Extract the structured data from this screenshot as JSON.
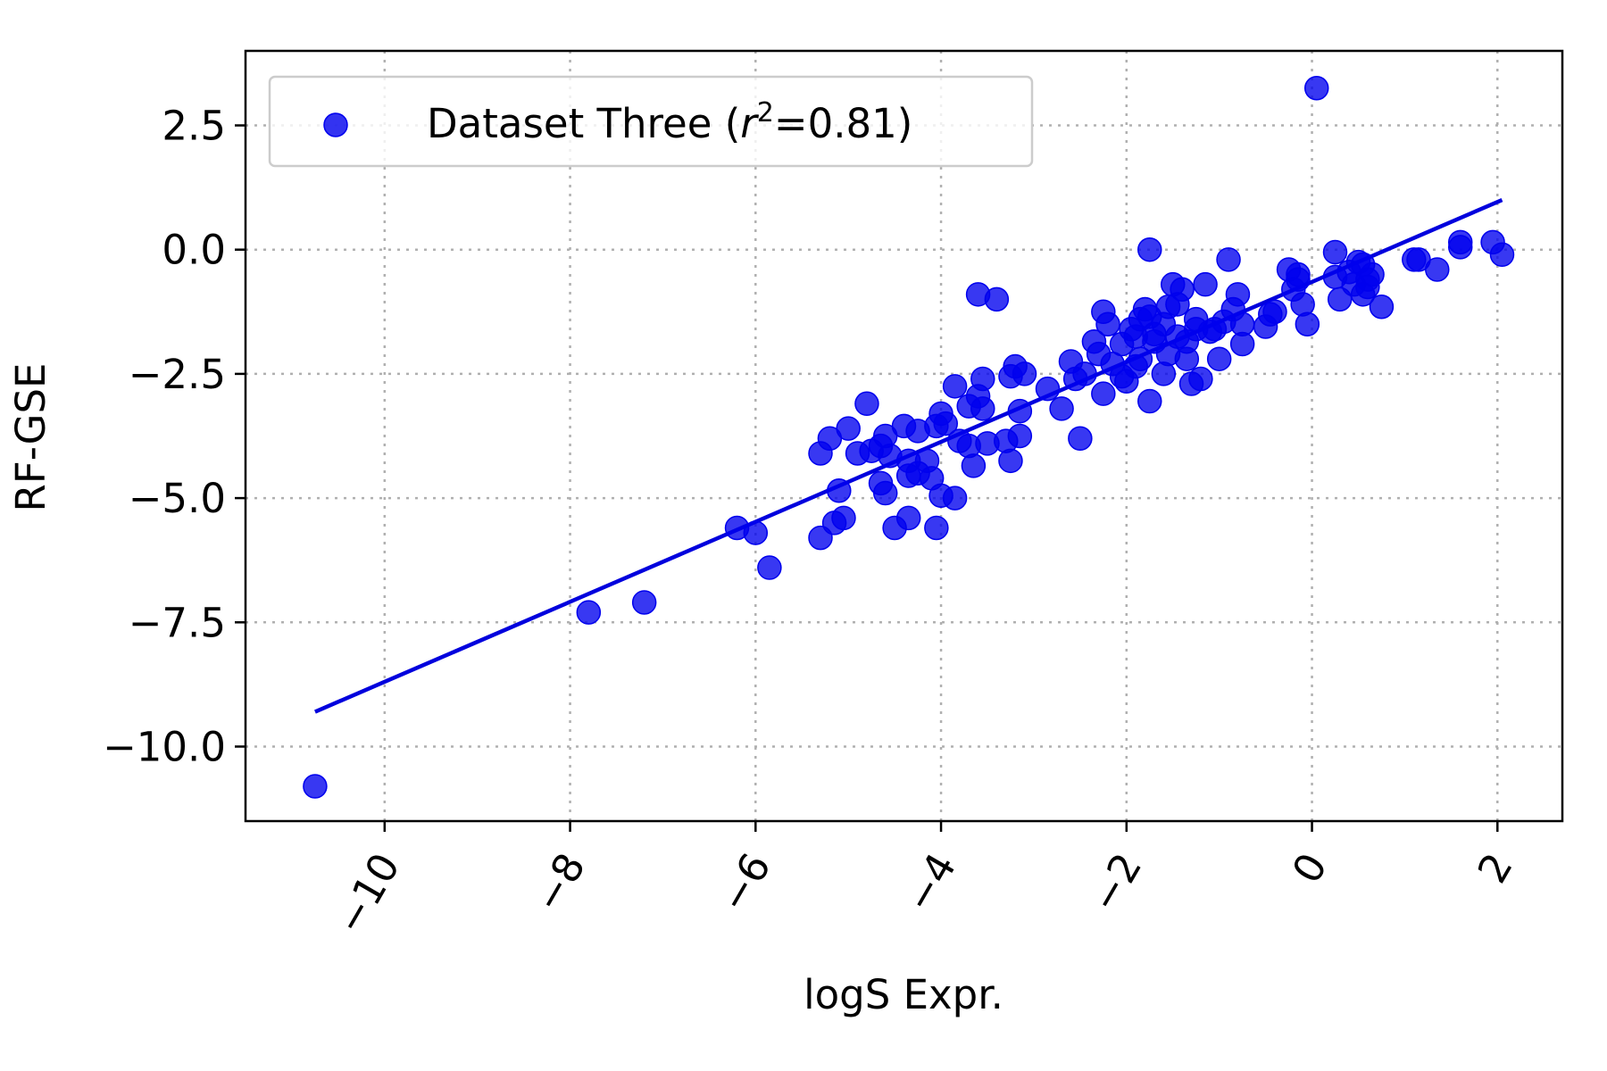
{
  "chart_data": {
    "type": "scatter",
    "xlabel": "logS Expr.",
    "ylabel": "RF-GSE",
    "xlim": [
      -11.5,
      2.7
    ],
    "ylim": [
      -11.5,
      4.0
    ],
    "xticks": [
      -10,
      -8,
      -6,
      -4,
      -2,
      0,
      2
    ],
    "xtick_labels": [
      "−10",
      "−8",
      "−6",
      "−4",
      "−2",
      "0",
      "2"
    ],
    "yticks": [
      2.5,
      0.0,
      -2.5,
      -5.0,
      -7.5,
      -10.0
    ],
    "ytick_labels": [
      "2.5",
      "0.0",
      "−2.5",
      "−5.0",
      "−7.5",
      "−10.0"
    ],
    "grid": true,
    "legend_position": "upper-left",
    "legend": {
      "label_prefix": "Dataset Three (",
      "label_var": "r",
      "label_sup": "2",
      "label_suffix": "=0.81)"
    },
    "colors": {
      "points": "#0000ee",
      "fit_line": "#0000dd"
    },
    "fit_line": {
      "x": [
        -10.75,
        2.05
      ],
      "y": [
        -9.3,
        1.0
      ]
    },
    "series": [
      {
        "points": [
          [
            -10.75,
            -10.8
          ],
          [
            -7.8,
            -7.3
          ],
          [
            -7.2,
            -7.1
          ],
          [
            -6.2,
            -5.6
          ],
          [
            -6.0,
            -5.7
          ],
          [
            -5.85,
            -6.4
          ],
          [
            -5.3,
            -4.1
          ],
          [
            -5.2,
            -3.8
          ],
          [
            -5.3,
            -5.8
          ],
          [
            -5.0,
            -3.6
          ],
          [
            -5.05,
            -5.4
          ],
          [
            -5.15,
            -5.5
          ],
          [
            -5.1,
            -4.85
          ],
          [
            -4.9,
            -4.1
          ],
          [
            -4.8,
            -3.1
          ],
          [
            -4.75,
            -4.05
          ],
          [
            -4.65,
            -3.95
          ],
          [
            -4.6,
            -3.75
          ],
          [
            -4.55,
            -4.15
          ],
          [
            -4.6,
            -4.9
          ],
          [
            -4.65,
            -4.7
          ],
          [
            -4.5,
            -5.6
          ],
          [
            -4.35,
            -5.4
          ],
          [
            -4.4,
            -3.55
          ],
          [
            -4.25,
            -3.65
          ],
          [
            -4.35,
            -4.55
          ],
          [
            -4.25,
            -4.5
          ],
          [
            -4.15,
            -4.25
          ],
          [
            -4.1,
            -4.6
          ],
          [
            -4.05,
            -3.55
          ],
          [
            -4.0,
            -3.3
          ],
          [
            -3.95,
            -3.5
          ],
          [
            -4.0,
            -4.95
          ],
          [
            -4.05,
            -5.6
          ],
          [
            -3.85,
            -5.0
          ],
          [
            -3.8,
            -3.85
          ],
          [
            -3.7,
            -3.95
          ],
          [
            -3.85,
            -2.75
          ],
          [
            -3.7,
            -3.15
          ],
          [
            -3.6,
            -2.95
          ],
          [
            -3.55,
            -3.2
          ],
          [
            -3.55,
            -2.6
          ],
          [
            -3.65,
            -4.35
          ],
          [
            -3.5,
            -3.9
          ],
          [
            -3.6,
            -0.9
          ],
          [
            -3.4,
            -1.0
          ],
          [
            -3.3,
            -3.85
          ],
          [
            -3.25,
            -4.25
          ],
          [
            -3.15,
            -3.75
          ],
          [
            -3.15,
            -3.25
          ],
          [
            -3.2,
            -2.35
          ],
          [
            -3.1,
            -2.5
          ],
          [
            -3.25,
            -2.55
          ],
          [
            -2.85,
            -2.8
          ],
          [
            -2.7,
            -3.2
          ],
          [
            -2.6,
            -2.25
          ],
          [
            -2.5,
            -3.8
          ],
          [
            -2.45,
            -2.5
          ],
          [
            -2.35,
            -1.85
          ],
          [
            -2.3,
            -2.1
          ],
          [
            -2.25,
            -1.25
          ],
          [
            -2.2,
            -1.5
          ],
          [
            -2.25,
            -2.9
          ],
          [
            -2.15,
            -2.3
          ],
          [
            -2.05,
            -2.55
          ],
          [
            -2.0,
            -2.65
          ],
          [
            -1.95,
            -1.6
          ],
          [
            -1.9,
            -1.75
          ],
          [
            -1.85,
            -1.4
          ],
          [
            -1.85,
            -2.2
          ],
          [
            -1.8,
            -1.2
          ],
          [
            -1.75,
            -1.35
          ],
          [
            -1.7,
            -1.7
          ],
          [
            -1.75,
            -3.05
          ],
          [
            -1.7,
            -1.85
          ],
          [
            -1.6,
            -1.5
          ],
          [
            -1.55,
            -2.1
          ],
          [
            -1.6,
            -2.5
          ],
          [
            -1.5,
            -0.7
          ],
          [
            -1.45,
            -1.75
          ],
          [
            -1.45,
            -1.1
          ],
          [
            -1.4,
            -0.8
          ],
          [
            -1.35,
            -2.2
          ],
          [
            -1.35,
            -1.85
          ],
          [
            -1.3,
            -2.7
          ],
          [
            -1.25,
            -1.4
          ],
          [
            -1.2,
            -2.6
          ],
          [
            -1.15,
            -0.7
          ],
          [
            -1.1,
            -1.65
          ],
          [
            -1.05,
            -1.6
          ],
          [
            -1.0,
            -2.2
          ],
          [
            -0.95,
            -1.45
          ],
          [
            -0.9,
            -0.2
          ],
          [
            -0.85,
            -1.2
          ],
          [
            -0.8,
            -0.9
          ],
          [
            -0.75,
            -1.5
          ],
          [
            -0.75,
            -1.9
          ],
          [
            -0.5,
            -1.55
          ],
          [
            -0.45,
            -1.3
          ],
          [
            -0.4,
            -1.25
          ],
          [
            -0.25,
            -0.4
          ],
          [
            -0.2,
            -0.8
          ],
          [
            -0.15,
            -0.6
          ],
          [
            -0.1,
            -1.1
          ],
          [
            -0.05,
            -1.5
          ],
          [
            0.05,
            3.25
          ],
          [
            0.25,
            -0.05
          ],
          [
            0.25,
            -0.55
          ],
          [
            0.3,
            -1.0
          ],
          [
            0.4,
            -0.45
          ],
          [
            0.45,
            -0.7
          ],
          [
            0.5,
            -0.25
          ],
          [
            0.55,
            -0.3
          ],
          [
            0.55,
            -0.9
          ],
          [
            0.6,
            -0.6
          ],
          [
            0.6,
            -0.75
          ],
          [
            0.65,
            -0.5
          ],
          [
            0.75,
            -1.15
          ],
          [
            1.1,
            -0.2
          ],
          [
            1.15,
            -0.2
          ],
          [
            1.35,
            -0.4
          ],
          [
            1.6,
            0.15
          ],
          [
            1.6,
            0.05
          ],
          [
            1.95,
            0.15
          ],
          [
            2.05,
            -0.1
          ],
          [
            -1.75,
            0.0
          ],
          [
            -0.15,
            -0.5
          ],
          [
            -1.55,
            -1.15
          ],
          [
            -1.25,
            -1.6
          ],
          [
            -2.05,
            -1.9
          ],
          [
            -1.9,
            -2.35
          ],
          [
            -2.55,
            -2.6
          ],
          [
            -4.35,
            -4.25
          ]
        ]
      }
    ]
  }
}
